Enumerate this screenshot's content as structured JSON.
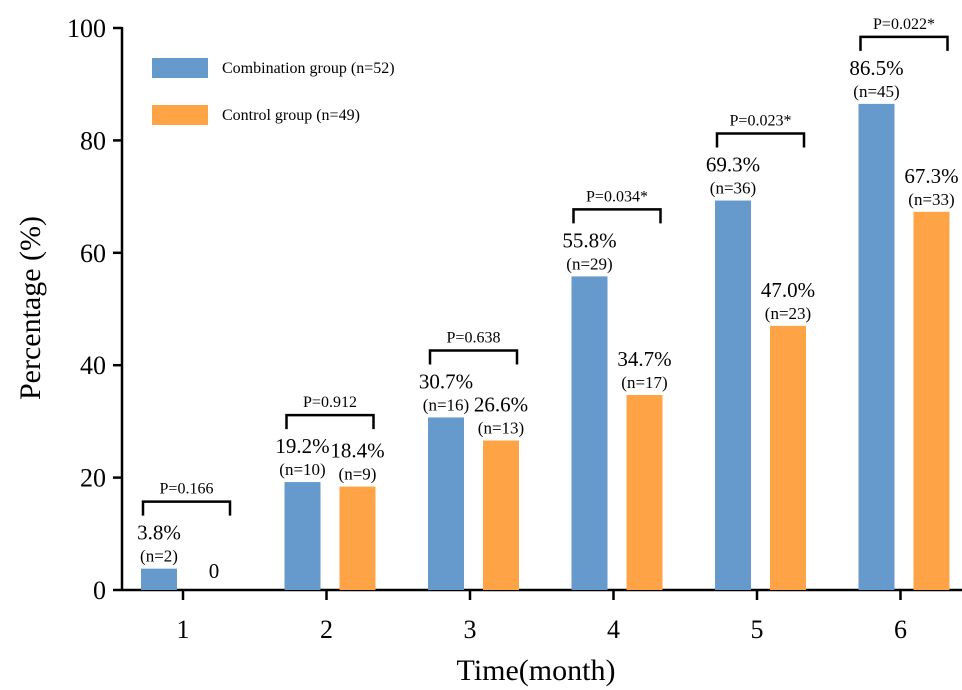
{
  "chart_data": {
    "type": "bar",
    "xlabel": "Time(month)",
    "ylabel": "Percentage (%)",
    "ylim": [
      0,
      100
    ],
    "yticks": [
      0,
      20,
      40,
      60,
      80,
      100
    ],
    "categories": [
      "1",
      "2",
      "3",
      "4",
      "5",
      "6"
    ],
    "series": [
      {
        "name": "Combination group (n=52)",
        "color": "#6699cc",
        "values": [
          3.8,
          19.2,
          30.7,
          55.8,
          69.3,
          86.5
        ],
        "pct_labels": [
          "3.8%",
          "19.2%",
          "30.7%",
          "55.8%",
          "69.3%",
          "86.5%"
        ],
        "n_labels": [
          "(n=2)",
          "(n=10)",
          "(n=16)",
          "(n=29)",
          "(n=36)",
          "(n=45)"
        ]
      },
      {
        "name": "Control group (n=49)",
        "color": "#ffa347",
        "values": [
          0,
          18.4,
          26.6,
          34.7,
          47.0,
          67.3
        ],
        "pct_labels": [
          "0",
          "18.4%",
          "26.6%",
          "34.7%",
          "47.0%",
          "67.3%"
        ],
        "n_labels": [
          "",
          "(n=9)",
          "(n=13)",
          "(n=17)",
          "(n=23)",
          "(n=33)"
        ]
      }
    ],
    "p_values": [
      "P=0.166",
      "P=0.912",
      "P=0.638",
      "P=0.034*",
      "P=0.023*",
      "P=0.022*"
    ],
    "legend_position": "top-left",
    "grid": false
  }
}
